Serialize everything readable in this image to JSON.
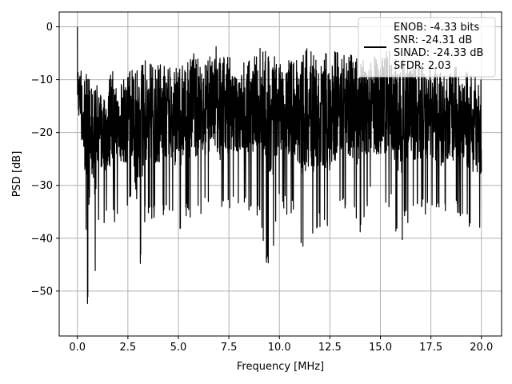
{
  "chart_data": {
    "type": "line",
    "title": "",
    "xlabel": "Frequency [MHz]",
    "ylabel": "PSD [dB]",
    "xlim": [
      -0.9,
      21.0
    ],
    "ylim": [
      -58.5,
      2.8
    ],
    "xticks": [
      0.0,
      2.5,
      5.0,
      7.5,
      10.0,
      12.5,
      15.0,
      17.5,
      20.0
    ],
    "xtick_labels": [
      "0.0",
      "2.5",
      "5.0",
      "7.5",
      "10.0",
      "12.5",
      "15.0",
      "17.5",
      "20.0"
    ],
    "yticks": [
      0,
      -10,
      -20,
      -30,
      -40,
      -50
    ],
    "ytick_labels": [
      "0",
      "−10",
      "−20",
      "−30",
      "−40",
      "−50"
    ],
    "grid": true,
    "legend_position": "top-right",
    "colors": {
      "series": "#000000",
      "grid": "#b0b0b0",
      "legend_border": "#cccccc"
    },
    "legend": {
      "lines": [
        "ENOB: -4.33 bits",
        "SNR: -24.31 dB",
        "SINAD: -24.33 dB",
        "SFDR: 2.03"
      ]
    },
    "series": [
      {
        "x": [
          0.0,
          0.05,
          0.1,
          0.2,
          0.3,
          0.4,
          0.45,
          0.5,
          0.6,
          0.8,
          0.9,
          1.0,
          1.2,
          1.5,
          1.8,
          2.0,
          2.5,
          2.7,
          3.0,
          3.3,
          3.6,
          4.0,
          4.5,
          5.0,
          5.5,
          6.0,
          6.5,
          6.8,
          7.0,
          7.5,
          8.0,
          8.5,
          9.0,
          9.5,
          10.0,
          10.5,
          11.0,
          11.1,
          11.5,
          11.7,
          12.0,
          12.5,
          13.0,
          13.5,
          14.0,
          14.5,
          15.0,
          15.5,
          16.0,
          16.2,
          16.5,
          17.0,
          17.5,
          18.0,
          18.5,
          19.0,
          19.5,
          20.0
        ],
        "y_max": [
          0.0,
          -8,
          -7,
          -8,
          -10,
          -9,
          -9,
          -9,
          -8,
          -10,
          -12,
          -10,
          -11,
          -10,
          -8,
          -10,
          -9,
          -7,
          -8,
          -6,
          -7,
          -7,
          -7,
          -7,
          -4,
          -6,
          -6,
          -2,
          -6,
          -5,
          -7,
          -6,
          -4,
          -5,
          -4,
          -6,
          -5,
          -6,
          -3,
          -5,
          -6,
          -4,
          -5,
          -5,
          -6,
          -6,
          -5,
          -4,
          -6,
          -6,
          -6,
          -7,
          -7,
          -8,
          -7,
          -8,
          -9,
          -10
        ],
        "y_min": [
          -15,
          -24,
          -22,
          -30,
          -35,
          -42,
          -38,
          -56,
          -48,
          -40,
          -48,
          -36,
          -38,
          -37,
          -38,
          -36,
          -36,
          -35,
          -51,
          -38,
          -36,
          -38,
          -35,
          -39,
          -37,
          -36,
          -35,
          -38,
          -37,
          -35,
          -34,
          -35,
          -37,
          -49,
          -35,
          -36,
          -38,
          -42,
          -40,
          -43,
          -38,
          -42,
          -34,
          -36,
          -39,
          -34,
          -37,
          -35,
          -42,
          -38,
          -37,
          -36,
          -36,
          -38,
          -36,
          -37,
          -38,
          -40
        ]
      }
    ]
  }
}
